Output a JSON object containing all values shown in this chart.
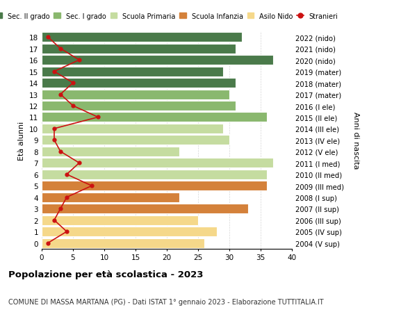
{
  "ages": [
    18,
    17,
    16,
    15,
    14,
    13,
    12,
    11,
    10,
    9,
    8,
    7,
    6,
    5,
    4,
    3,
    2,
    1,
    0
  ],
  "right_labels": [
    "2004 (V sup)",
    "2005 (IV sup)",
    "2006 (III sup)",
    "2007 (II sup)",
    "2008 (I sup)",
    "2009 (III med)",
    "2010 (II med)",
    "2011 (I med)",
    "2012 (V ele)",
    "2013 (IV ele)",
    "2014 (III ele)",
    "2015 (II ele)",
    "2016 (I ele)",
    "2017 (mater)",
    "2018 (mater)",
    "2019 (mater)",
    "2020 (nido)",
    "2021 (nido)",
    "2022 (nido)"
  ],
  "bar_values": [
    32,
    31,
    37,
    29,
    31,
    30,
    31,
    36,
    29,
    30,
    22,
    37,
    36,
    36,
    22,
    33,
    25,
    28,
    26
  ],
  "bar_colors": [
    "#4a7a4a",
    "#4a7a4a",
    "#4a7a4a",
    "#4a7a4a",
    "#4a7a4a",
    "#8ab86e",
    "#8ab86e",
    "#8ab86e",
    "#c5dca0",
    "#c5dca0",
    "#c5dca0",
    "#c5dca0",
    "#c5dca0",
    "#d4813a",
    "#d4813a",
    "#d4813a",
    "#f5d88a",
    "#f5d88a",
    "#f5d88a"
  ],
  "stranieri_values": [
    1,
    3,
    6,
    2,
    5,
    3,
    5,
    9,
    2,
    2,
    3,
    6,
    4,
    8,
    4,
    3,
    2,
    4,
    1
  ],
  "legend_labels": [
    "Sec. II grado",
    "Sec. I grado",
    "Scuola Primaria",
    "Scuola Infanzia",
    "Asilo Nido",
    "Stranieri"
  ],
  "legend_colors": [
    "#4a7a4a",
    "#8ab86e",
    "#c5dca0",
    "#d4813a",
    "#f5d88a",
    "#cc1111"
  ],
  "ylabel_left": "Età alunni",
  "ylabel_right": "Anni di nascita",
  "title": "Popolazione per età scolastica - 2023",
  "subtitle": "COMUNE DI MASSA MARTANA (PG) - Dati ISTAT 1° gennaio 2023 - Elaborazione TUTTITALIA.IT",
  "xlim": [
    0,
    40
  ],
  "xticks": [
    0,
    5,
    10,
    15,
    20,
    25,
    30,
    35,
    40
  ],
  "background_color": "#ffffff",
  "grid_color": "#cccccc"
}
